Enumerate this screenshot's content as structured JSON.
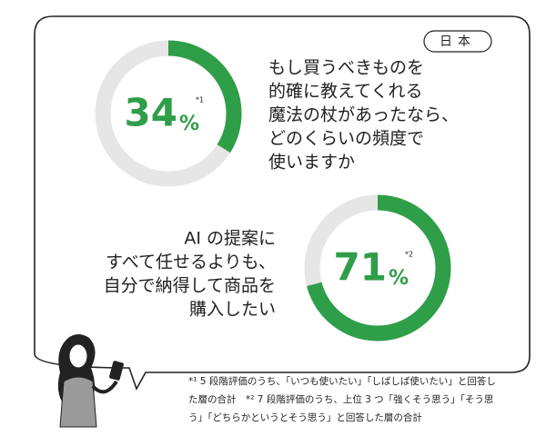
{
  "badge": "日本",
  "chart_data": [
    {
      "type": "donut",
      "values": [
        34
      ],
      "unit": "%",
      "note_mark": "*1",
      "color": "#2f9e48",
      "question": [
        "もし買うべきものを",
        "的確に教えてくれる",
        "魔法の杖があったなら、",
        "どのくらいの頻度で",
        "使いますか"
      ]
    },
    {
      "type": "donut",
      "values": [
        71
      ],
      "unit": "%",
      "note_mark": "*2",
      "color": "#2f9e48",
      "question": [
        "AI の提案に",
        "すべて任せるよりも、",
        "自分で納得して商品を",
        "購入したい"
      ]
    }
  ],
  "footnotes": [
    "*¹ 5 段階評価のうち、「いつも使いたい」「しばしば使いたい」と回答し",
    "た層の合計　*² 7 段階評価のうち、上位 3 つ「強くそう思う」「そう思",
    "う」「どちらかというとそう思う」と回答した層の合計"
  ]
}
